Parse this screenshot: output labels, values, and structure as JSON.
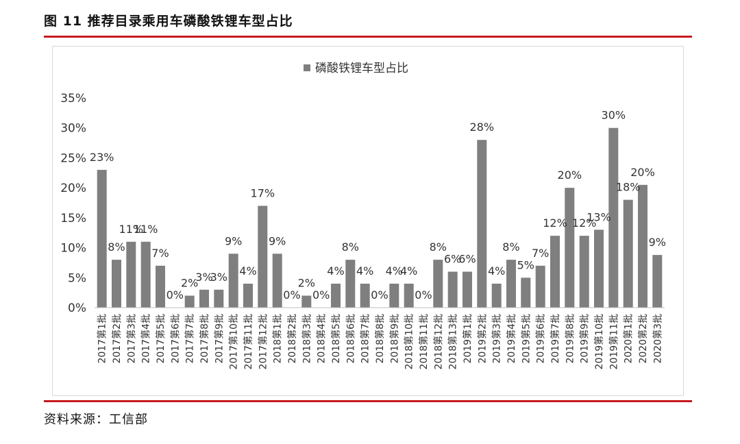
{
  "figure": {
    "title": "图 11 推荐目录乘用车磷酸铁锂车型占比",
    "source": "资料来源：工信部"
  },
  "colors": {
    "bar": "#7f7f7f",
    "accent_rule": "#c8181e"
  },
  "chart_data": {
    "type": "bar",
    "legend": {
      "position": "top",
      "entries": [
        "磷酸铁锂车型占比"
      ]
    },
    "ylim": [
      0,
      35
    ],
    "yticks": [
      "0%",
      "5%",
      "10%",
      "15%",
      "20%",
      "25%",
      "30%",
      "35%"
    ],
    "grid": false,
    "categories": [
      "2017第1批",
      "2017第2批",
      "2017第3批",
      "2017第4批",
      "2017第5批",
      "2017第6批",
      "2017第7批",
      "2017第8批",
      "2017第9批",
      "2017第10批",
      "2017第11批",
      "2017第12批",
      "2018第1批",
      "2018第2批",
      "2018第3批",
      "2018第4批",
      "2018第5批",
      "2018第6批",
      "2018第7批",
      "2018第8批",
      "2018第9批",
      "2018第10批",
      "2018第11批",
      "2018第12批",
      "2018第13批",
      "2019第1批",
      "2019第2批",
      "2019第3批",
      "2019第4批",
      "2019第5批",
      "2019第6批",
      "2019第7批",
      "2019第8批",
      "2019第9批",
      "2019第10批",
      "2019第11批",
      "2020第1批",
      "2020第2批",
      "2020第3批"
    ],
    "series": [
      {
        "name": "磷酸铁锂车型占比",
        "values": [
          23,
          8,
          11,
          11,
          7,
          0,
          2,
          3,
          3,
          9,
          4,
          17,
          9,
          0,
          2,
          0,
          4,
          8,
          4,
          0,
          4,
          4,
          0,
          8,
          6,
          6,
          28,
          4,
          8,
          5,
          7,
          12,
          20,
          12,
          13,
          30,
          18,
          20.5,
          8.8
        ],
        "labels": [
          "23%",
          "8%",
          "11%",
          "11%",
          "7%",
          "0%",
          "2%",
          "3%",
          "3%",
          "9%",
          "4%",
          "17%",
          "9%",
          "0%",
          "2%",
          "0%",
          "4%",
          "8%",
          "4%",
          "0%",
          "4%",
          "4%",
          "0%",
          "8%",
          "6%",
          "6%",
          "28%",
          "4%",
          "8%",
          "5%",
          "7%",
          "12%",
          "20%",
          "12%",
          "13%",
          "30%",
          "18%",
          "20%",
          "9%"
        ]
      }
    ]
  }
}
